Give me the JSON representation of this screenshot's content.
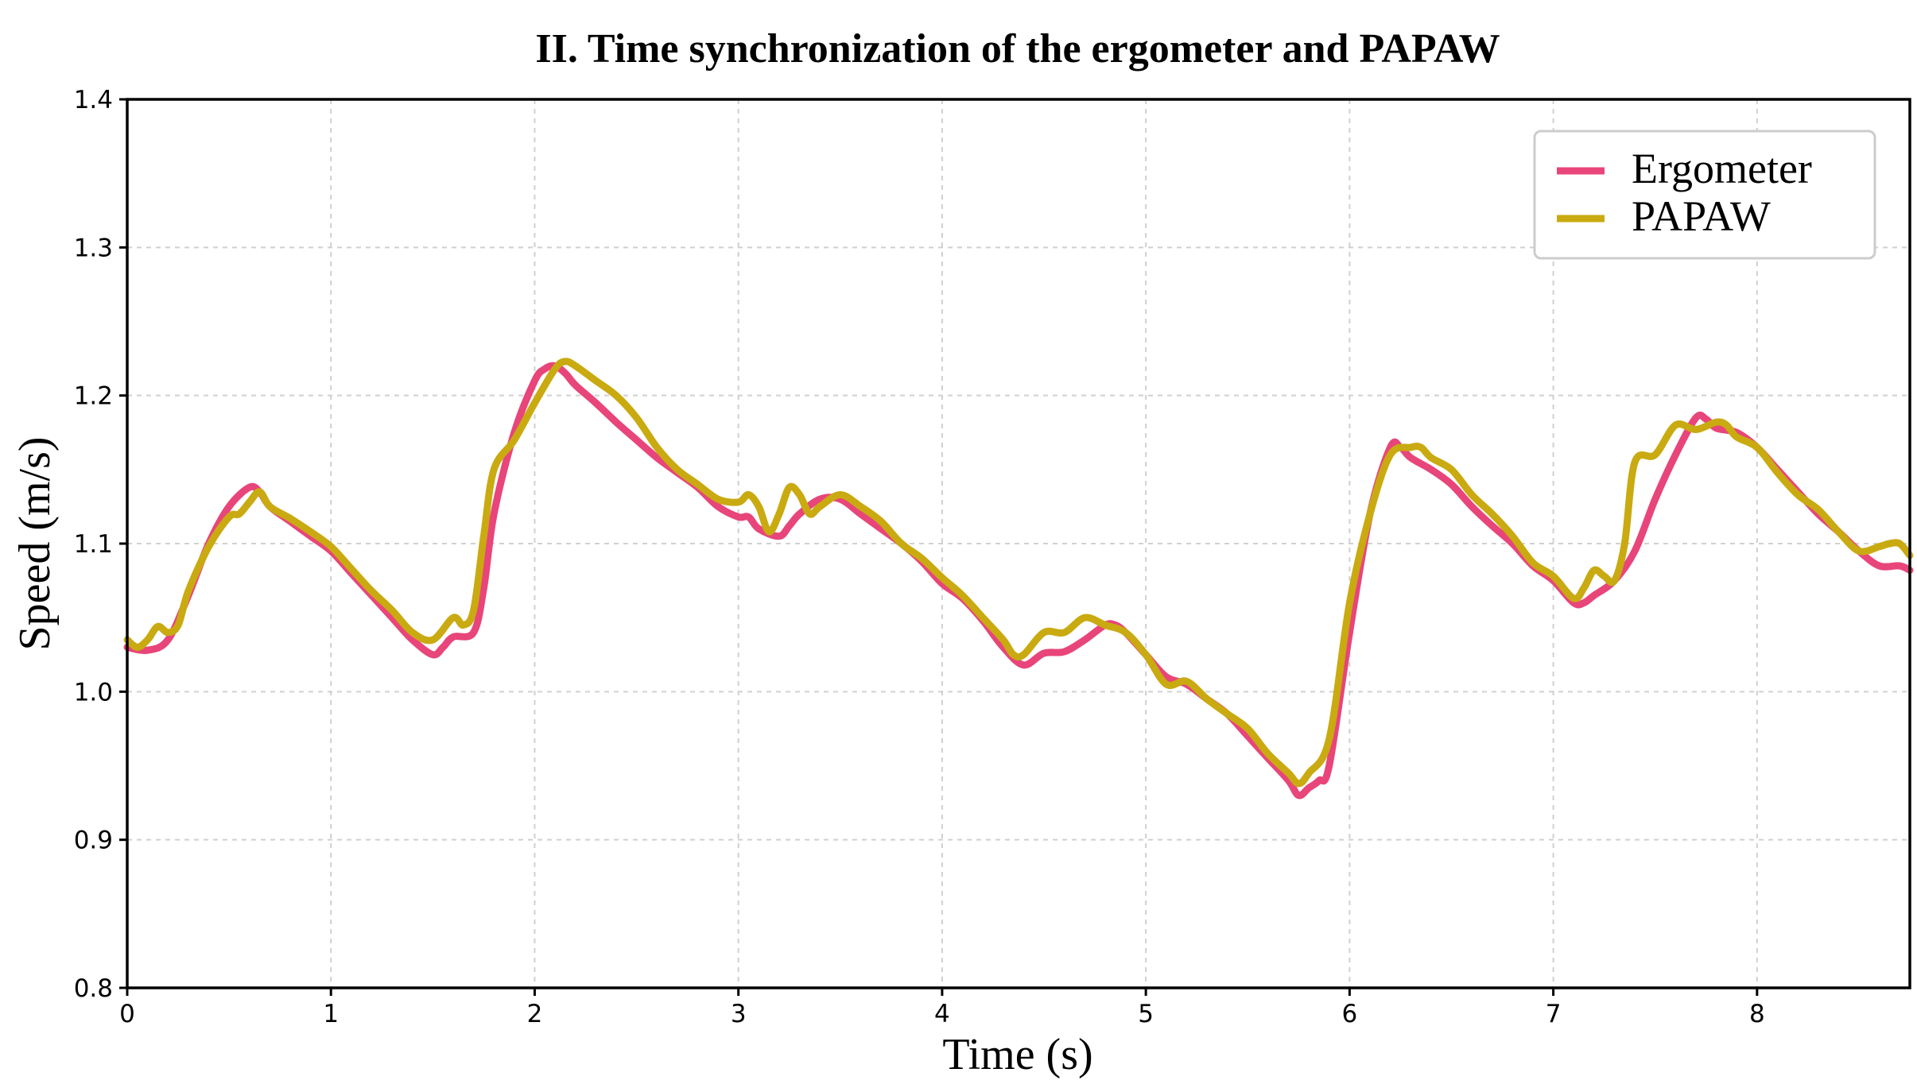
{
  "chart_data": {
    "type": "line",
    "title": "II. Time synchronization of the ergometer and PAPAW",
    "xlabel": "Time (s)",
    "ylabel": "Speed (m/s)",
    "xlim": [
      0,
      8.75
    ],
    "ylim": [
      0.8,
      1.4
    ],
    "grid": true,
    "legend_position": "top-right",
    "x_ticks": [
      0,
      1,
      2,
      3,
      4,
      5,
      6,
      7,
      8
    ],
    "x_tick_labels": [
      "0",
      "1",
      "2",
      "3",
      "4",
      "5",
      "6",
      "7",
      "8"
    ],
    "y_ticks": [
      0.8,
      0.9,
      1.0,
      1.1,
      1.2,
      1.3,
      1.4
    ],
    "y_tick_labels": [
      "0.8",
      "0.9",
      "1.0",
      "1.1",
      "1.2",
      "1.3",
      "1.4"
    ],
    "series": [
      {
        "name": "Ergometer",
        "color": "#e8457a",
        "x": [
          0,
          0.1,
          0.2,
          0.3,
          0.4,
          0.5,
          0.6,
          0.65,
          0.7,
          0.8,
          0.9,
          1.0,
          1.1,
          1.2,
          1.3,
          1.4,
          1.5,
          1.55,
          1.6,
          1.7,
          1.75,
          1.8,
          1.9,
          2.0,
          2.05,
          2.1,
          2.15,
          2.2,
          2.3,
          2.4,
          2.5,
          2.6,
          2.7,
          2.8,
          2.9,
          3.0,
          3.05,
          3.1,
          3.2,
          3.25,
          3.3,
          3.4,
          3.5,
          3.6,
          3.7,
          3.8,
          3.9,
          4.0,
          4.1,
          4.2,
          4.3,
          4.4,
          4.5,
          4.6,
          4.7,
          4.8,
          4.85,
          4.9,
          5.0,
          5.1,
          5.2,
          5.3,
          5.4,
          5.5,
          5.6,
          5.7,
          5.75,
          5.8,
          5.85,
          5.9,
          6.0,
          6.1,
          6.2,
          6.25,
          6.3,
          6.4,
          6.5,
          6.6,
          6.7,
          6.8,
          6.9,
          7.0,
          7.1,
          7.15,
          7.2,
          7.3,
          7.4,
          7.5,
          7.6,
          7.7,
          7.75,
          7.8,
          7.9,
          8.0,
          8.1,
          8.2,
          8.3,
          8.4,
          8.5,
          8.6,
          8.7,
          8.75
        ],
        "values": [
          1.03,
          1.028,
          1.035,
          1.065,
          1.1,
          1.125,
          1.138,
          1.135,
          1.125,
          1.115,
          1.105,
          1.095,
          1.08,
          1.065,
          1.05,
          1.035,
          1.025,
          1.03,
          1.037,
          1.04,
          1.07,
          1.12,
          1.175,
          1.21,
          1.218,
          1.22,
          1.215,
          1.207,
          1.195,
          1.182,
          1.17,
          1.158,
          1.148,
          1.138,
          1.125,
          1.118,
          1.118,
          1.11,
          1.105,
          1.112,
          1.12,
          1.13,
          1.13,
          1.12,
          1.11,
          1.1,
          1.088,
          1.073,
          1.063,
          1.048,
          1.03,
          1.018,
          1.026,
          1.027,
          1.035,
          1.045,
          1.045,
          1.04,
          1.025,
          1.01,
          1.005,
          0.995,
          0.985,
          0.97,
          0.955,
          0.94,
          0.93,
          0.935,
          0.94,
          0.95,
          1.04,
          1.12,
          1.165,
          1.165,
          1.158,
          1.15,
          1.14,
          1.125,
          1.112,
          1.1,
          1.085,
          1.075,
          1.06,
          1.06,
          1.065,
          1.075,
          1.095,
          1.13,
          1.16,
          1.185,
          1.184,
          1.178,
          1.175,
          1.165,
          1.15,
          1.135,
          1.12,
          1.108,
          1.095,
          1.085,
          1.085,
          1.082
        ]
      },
      {
        "name": "PAPAW",
        "color": "#c9aa10",
        "x": [
          0,
          0.05,
          0.1,
          0.15,
          0.2,
          0.25,
          0.3,
          0.4,
          0.5,
          0.55,
          0.6,
          0.65,
          0.7,
          0.8,
          0.9,
          1.0,
          1.1,
          1.2,
          1.3,
          1.4,
          1.5,
          1.6,
          1.65,
          1.7,
          1.75,
          1.8,
          1.9,
          2.0,
          2.1,
          2.15,
          2.2,
          2.3,
          2.4,
          2.5,
          2.6,
          2.7,
          2.8,
          2.9,
          3.0,
          3.05,
          3.1,
          3.15,
          3.2,
          3.25,
          3.3,
          3.35,
          3.4,
          3.5,
          3.6,
          3.7,
          3.8,
          3.9,
          4.0,
          4.1,
          4.2,
          4.3,
          4.35,
          4.4,
          4.5,
          4.6,
          4.7,
          4.8,
          4.9,
          5.0,
          5.1,
          5.2,
          5.3,
          5.4,
          5.5,
          5.6,
          5.7,
          5.75,
          5.8,
          5.9,
          6.0,
          6.1,
          6.2,
          6.3,
          6.35,
          6.4,
          6.5,
          6.6,
          6.7,
          6.8,
          6.9,
          7.0,
          7.1,
          7.15,
          7.2,
          7.25,
          7.3,
          7.35,
          7.4,
          7.5,
          7.6,
          7.7,
          7.8,
          7.85,
          7.9,
          8.0,
          8.1,
          8.2,
          8.3,
          8.4,
          8.5,
          8.6,
          8.65,
          8.7,
          8.75
        ],
        "values": [
          1.035,
          1.03,
          1.035,
          1.044,
          1.04,
          1.045,
          1.068,
          1.098,
          1.118,
          1.12,
          1.128,
          1.135,
          1.125,
          1.117,
          1.108,
          1.098,
          1.083,
          1.068,
          1.055,
          1.04,
          1.035,
          1.05,
          1.045,
          1.055,
          1.105,
          1.15,
          1.17,
          1.195,
          1.218,
          1.223,
          1.22,
          1.21,
          1.2,
          1.185,
          1.165,
          1.15,
          1.14,
          1.13,
          1.128,
          1.133,
          1.125,
          1.108,
          1.12,
          1.138,
          1.133,
          1.12,
          1.125,
          1.133,
          1.125,
          1.115,
          1.1,
          1.09,
          1.077,
          1.065,
          1.05,
          1.035,
          1.025,
          1.025,
          1.04,
          1.04,
          1.05,
          1.045,
          1.04,
          1.025,
          1.005,
          1.007,
          0.995,
          0.985,
          0.975,
          0.958,
          0.945,
          0.938,
          0.945,
          0.968,
          1.06,
          1.12,
          1.16,
          1.165,
          1.165,
          1.158,
          1.15,
          1.133,
          1.12,
          1.105,
          1.087,
          1.078,
          1.063,
          1.07,
          1.082,
          1.078,
          1.075,
          1.1,
          1.155,
          1.16,
          1.18,
          1.177,
          1.182,
          1.18,
          1.172,
          1.165,
          1.148,
          1.133,
          1.123,
          1.108,
          1.095,
          1.098,
          1.1,
          1.1,
          1.092
        ]
      }
    ]
  }
}
